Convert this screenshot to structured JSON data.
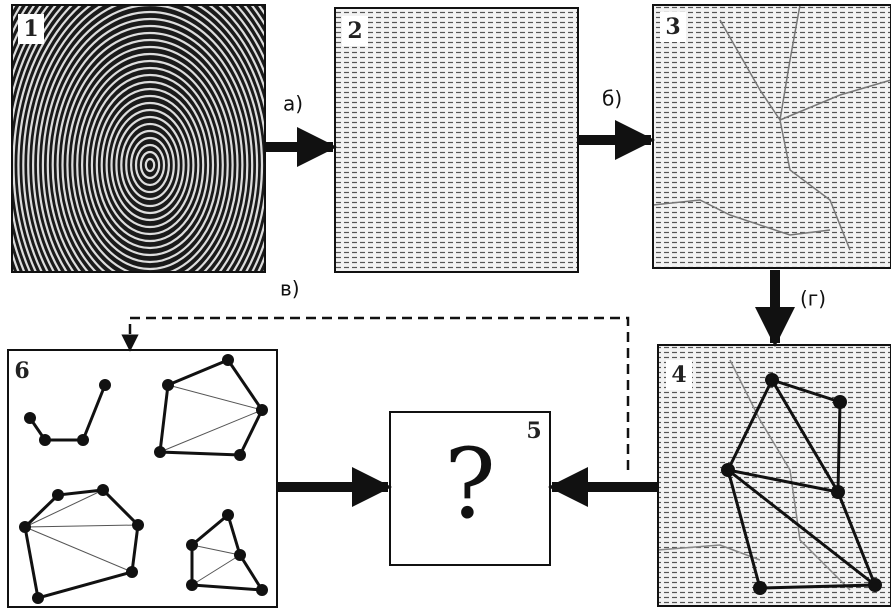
{
  "panels": [
    {
      "label": "1"
    },
    {
      "label": "2"
    },
    {
      "label": "3"
    },
    {
      "label": "4"
    },
    {
      "label": "5"
    },
    {
      "label": "6"
    }
  ],
  "steps": [
    {
      "label": "а)"
    },
    {
      "label": "б)"
    },
    {
      "label": "в)"
    },
    {
      "label": "(г)"
    }
  ],
  "result": {
    "symbol": "?"
  }
}
